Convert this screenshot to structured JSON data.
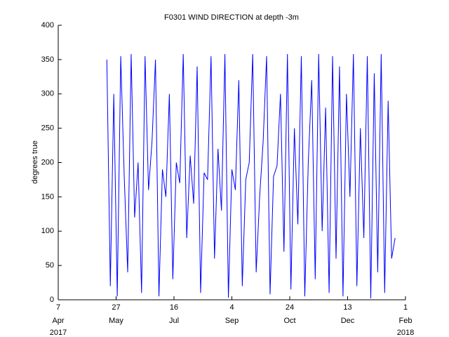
{
  "chart_data": {
    "type": "line",
    "title": "F0301 WIND DIRECTION at depth -3m",
    "y_label": "degrees true",
    "x": [
      "2017-05-19",
      "2017-05-22",
      "2017-05-25",
      "2017-05-28",
      "2017-05-31",
      "2017-06-03",
      "2017-06-06",
      "2017-06-09",
      "2017-06-12",
      "2017-06-15",
      "2017-06-18",
      "2017-06-21",
      "2017-06-24",
      "2017-06-27",
      "2017-06-30",
      "2017-07-03",
      "2017-07-06",
      "2017-07-09",
      "2017-07-12",
      "2017-07-15",
      "2017-07-18",
      "2017-07-21",
      "2017-07-24",
      "2017-07-27",
      "2017-07-30",
      "2017-08-02",
      "2017-08-05",
      "2017-08-08",
      "2017-08-11",
      "2017-08-14",
      "2017-08-17",
      "2017-08-20",
      "2017-08-23",
      "2017-08-26",
      "2017-08-29",
      "2017-09-01",
      "2017-09-04",
      "2017-09-07",
      "2017-09-10",
      "2017-09-13",
      "2017-09-16",
      "2017-09-19",
      "2017-09-22",
      "2017-09-25",
      "2017-09-28",
      "2017-10-01",
      "2017-10-04",
      "2017-10-07",
      "2017-10-10",
      "2017-10-13",
      "2017-10-16",
      "2017-10-19",
      "2017-10-22",
      "2017-10-25",
      "2017-10-28",
      "2017-10-31",
      "2017-11-03",
      "2017-11-06",
      "2017-11-09",
      "2017-11-12",
      "2017-11-15",
      "2017-11-18",
      "2017-11-21",
      "2017-11-24",
      "2017-11-27",
      "2017-11-30",
      "2017-12-03",
      "2017-12-06",
      "2017-12-09",
      "2017-12-12",
      "2017-12-15",
      "2017-12-18",
      "2017-12-21",
      "2017-12-24",
      "2017-12-27",
      "2017-12-30",
      "2018-01-02",
      "2018-01-05",
      "2018-01-08",
      "2018-01-11",
      "2018-01-14",
      "2018-01-17",
      "2018-01-20",
      "2018-01-23"
    ],
    "series": [
      {
        "color": "#0000ff",
        "values": [
          350,
          20,
          300,
          5,
          355,
          180,
          40,
          358,
          120,
          200,
          10,
          355,
          160,
          230,
          350,
          5,
          190,
          150,
          300,
          30,
          200,
          170,
          358,
          90,
          210,
          140,
          340,
          10,
          185,
          175,
          355,
          60,
          220,
          130,
          358,
          3,
          190,
          160,
          320,
          20,
          175,
          200,
          358,
          40,
          150,
          230,
          355,
          8,
          180,
          195,
          300,
          70,
          358,
          15,
          250,
          110,
          355,
          5,
          200,
          320,
          30,
          358,
          100,
          280,
          10,
          355,
          60,
          340,
          5,
          300,
          150,
          358,
          20,
          250,
          90,
          355,
          2,
          330,
          40,
          358,
          10,
          290,
          60,
          90
        ]
      }
    ],
    "xlim": [
      "2017-04-07",
      "2018-02-01"
    ],
    "xticks": [
      {
        "value": "2017-04-07",
        "label": "7",
        "month": "Apr"
      },
      {
        "value": "2017-05-27",
        "label": "27",
        "month": "May"
      },
      {
        "value": "2017-07-16",
        "label": "16",
        "month": "Jul"
      },
      {
        "value": "2017-09-04",
        "label": "4",
        "month": "Sep"
      },
      {
        "value": "2017-10-24",
        "label": "24",
        "month": "Oct"
      },
      {
        "value": "2017-12-13",
        "label": "13",
        "month": "Dec"
      },
      {
        "value": "2018-02-01",
        "label": "1",
        "month": "Feb"
      }
    ],
    "year_labels": [
      {
        "value": "2017-04-07",
        "label": "2017"
      },
      {
        "value": "2018-02-01",
        "label": "2018"
      }
    ],
    "ylim": [
      0,
      400
    ],
    "yticks": [
      0,
      50,
      100,
      150,
      200,
      250,
      300,
      350,
      400
    ]
  }
}
